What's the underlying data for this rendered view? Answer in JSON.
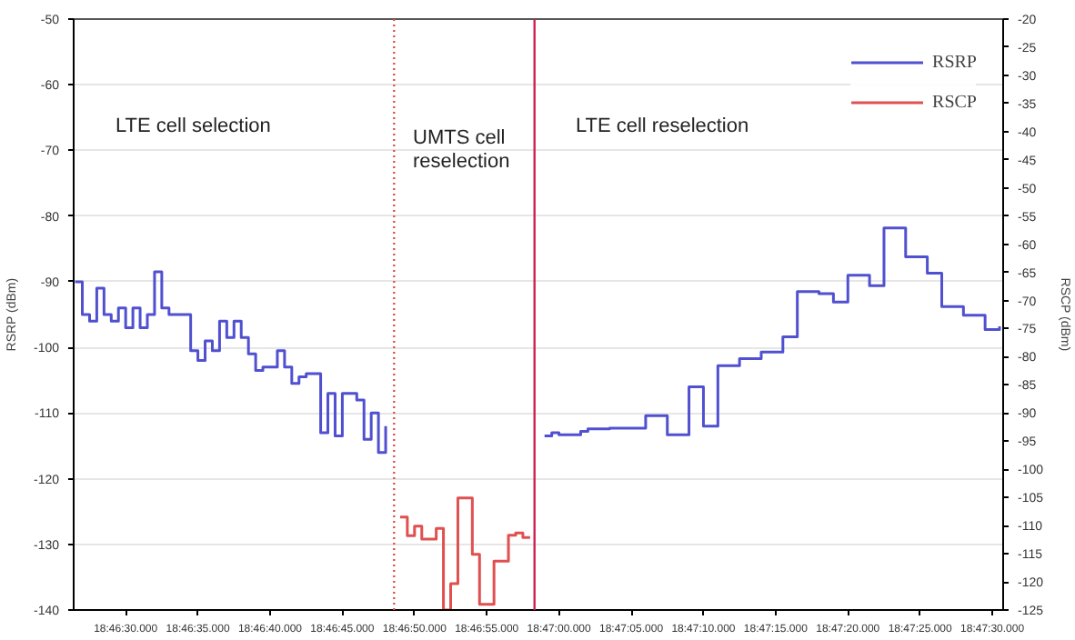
{
  "chart_data": {
    "type": "step",
    "ylabel": "RSRP (dBm)",
    "y2label": "RSCP (dBm)",
    "annotations": [
      "LTE cell selection",
      "UMTS cell\nreselection",
      "LTE cell reselection"
    ],
    "categories": [
      null,
      null,
      null,
      null,
      null,
      null,
      null,
      "18:46:30.000",
      null,
      null,
      null,
      null,
      null,
      null,
      null,
      null,
      null,
      "18:46:35.000",
      null,
      null,
      null,
      null,
      null,
      null,
      null,
      null,
      null,
      "18:46:40.000",
      null,
      null,
      null,
      null,
      null,
      null,
      null,
      null,
      null,
      "18:46:45.000",
      null,
      null,
      null,
      null,
      null,
      null,
      null,
      null,
      null,
      "18:46:50.000",
      null,
      null,
      null,
      null,
      null,
      null,
      null,
      null,
      null,
      "18:46:55.000",
      null,
      null,
      null,
      null,
      null,
      null,
      null,
      null,
      null,
      "18:47:00.000",
      null,
      null,
      null,
      null,
      null,
      null,
      null,
      null,
      null,
      "18:47:05.000",
      null,
      null,
      null,
      null,
      null,
      null,
      null,
      null,
      null,
      "18:47:10.000",
      null,
      null,
      null,
      null,
      null,
      null,
      null,
      null,
      null,
      "18:47:15.000",
      null,
      null,
      null,
      null,
      null,
      null,
      null,
      null,
      null,
      "18:47:20.000",
      null,
      null,
      null,
      null,
      null,
      null,
      null,
      null,
      null,
      "18:47:25.000",
      null,
      null,
      null,
      null,
      null,
      null,
      null,
      null,
      null,
      "18:47:30.000",
      null
    ],
    "series": [
      {
        "name": "RSRP",
        "color": "#5050d0",
        "axis": "y",
        "values": [
          -90,
          -95,
          -96,
          -91,
          -95,
          -96,
          -94,
          -97,
          -94,
          -97,
          -95,
          -88.5,
          -94,
          -95,
          -95,
          -95,
          -100.5,
          -102,
          -99,
          -100.5,
          -96,
          -98.5,
          -96,
          -98.5,
          -101,
          -103.5,
          -103,
          -103,
          -100.5,
          -103,
          -105.5,
          -104.5,
          -104,
          -104,
          -113,
          -107,
          -113.5,
          -107,
          -107,
          -108,
          -114,
          -110,
          -116,
          -112,
          null,
          null,
          null,
          null,
          null,
          null,
          null,
          null,
          null,
          null,
          null,
          null,
          null,
          null,
          null,
          null,
          null,
          null,
          null,
          null,
          null,
          -113.5,
          -113,
          -113.3,
          -113.3,
          -113.3,
          -112.8,
          -112.4,
          -112.4,
          -112.4,
          -112.3,
          -112.3,
          -112.3,
          -112.3,
          -112.3,
          -110.4,
          -110.4,
          -110.4,
          -113.3,
          -113.3,
          -113.3,
          -106,
          -106,
          -112,
          -112,
          -102.8,
          -102.8,
          -102.8,
          -101.7,
          -101.7,
          -101.7,
          -100.7,
          -100.7,
          -100.7,
          -98.4,
          -98.4,
          -91.5,
          -91.5,
          -91.5,
          -91.8,
          -91.8,
          -93.1,
          -93.1,
          -89,
          -89,
          -89,
          -90.6,
          -90.6,
          -81.8,
          -81.8,
          -81.8,
          -86.2,
          -86.2,
          -86.2,
          -88.7,
          -88.7,
          -93.8,
          -93.8,
          -93.8,
          -95.1,
          -95.1,
          -95.1,
          -97.3,
          -97.3,
          -96.8
        ]
      },
      {
        "name": "RSCP",
        "color": "#e05050",
        "axis": "y2",
        "values": [
          null,
          null,
          null,
          null,
          null,
          null,
          null,
          null,
          null,
          null,
          null,
          null,
          null,
          null,
          null,
          null,
          null,
          null,
          null,
          null,
          null,
          null,
          null,
          null,
          null,
          null,
          null,
          null,
          null,
          null,
          null,
          null,
          null,
          null,
          null,
          null,
          null,
          null,
          null,
          null,
          null,
          null,
          null,
          null,
          null,
          -108.5,
          -111.8,
          -110.1,
          -112.4,
          -112.4,
          -110.5,
          -125,
          -120.3,
          -105.1,
          -105.1,
          -115.1,
          -124,
          -124,
          -116.3,
          -116.3,
          -111.7,
          -111.3,
          -112.1,
          -112.1,
          null,
          null,
          null,
          null,
          null,
          null,
          null,
          null,
          null,
          null,
          null,
          null,
          null,
          null,
          null,
          null,
          null,
          null,
          null,
          null,
          null,
          null,
          null,
          null,
          null,
          null,
          null,
          null,
          null,
          null,
          null,
          null,
          null,
          null,
          null,
          null,
          null,
          null,
          null,
          null,
          null,
          null,
          null,
          null,
          null,
          null,
          null,
          null,
          null,
          null,
          null,
          null,
          null,
          null,
          null,
          null,
          null,
          null,
          null,
          null,
          null,
          null,
          null,
          null,
          null
        ]
      }
    ],
    "ylim": [
      -140,
      -50
    ],
    "yticks": [
      -140,
      -130,
      -120,
      -110,
      -100,
      -90,
      -80,
      -70,
      -60,
      -50
    ],
    "y2lim": [
      -125,
      -20
    ],
    "y2ticks": [
      -125,
      -120,
      -115,
      -110,
      -105,
      -100,
      -95,
      -90,
      -85,
      -80,
      -75,
      -70,
      -65,
      -60,
      -55,
      -50,
      -45,
      -40,
      -35,
      -30,
      -25,
      -20
    ],
    "grid": "y",
    "legend": "top right",
    "marker": "none"
  }
}
